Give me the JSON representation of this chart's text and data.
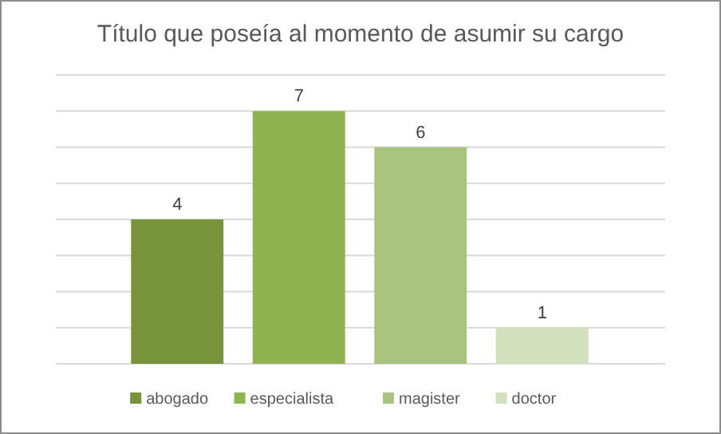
{
  "chart_data": {
    "type": "bar",
    "title": "Título que poseía al momento de asumir su cargo",
    "categories": [
      null,
      null,
      null,
      null
    ],
    "series": [
      {
        "name": "abogado",
        "color": "#77933c",
        "values": [
          4,
          null,
          null,
          null
        ]
      },
      {
        "name": "especialista",
        "color": "#8fb350",
        "values": [
          null,
          7,
          null,
          null
        ]
      },
      {
        "name": "magister",
        "color": "#a9c47f",
        "values": [
          null,
          null,
          6,
          null
        ]
      },
      {
        "name": "doctor",
        "color": "#d3e0bd",
        "values": [
          null,
          null,
          null,
          1
        ]
      }
    ],
    "stacked": true,
    "ylim": [
      0,
      8
    ],
    "yticks": [
      {
        "value": 0,
        "label": null
      },
      {
        "value": 1,
        "label": null
      },
      {
        "value": 2,
        "label": null
      },
      {
        "value": 3,
        "label": null
      },
      {
        "value": 4,
        "label": null
      },
      {
        "value": 5,
        "label": null
      },
      {
        "value": 6,
        "label": null
      },
      {
        "value": 7,
        "label": null
      },
      {
        "value": 8,
        "label": null
      }
    ],
    "grid": "y",
    "data_labels": true,
    "legend": "bottom"
  }
}
